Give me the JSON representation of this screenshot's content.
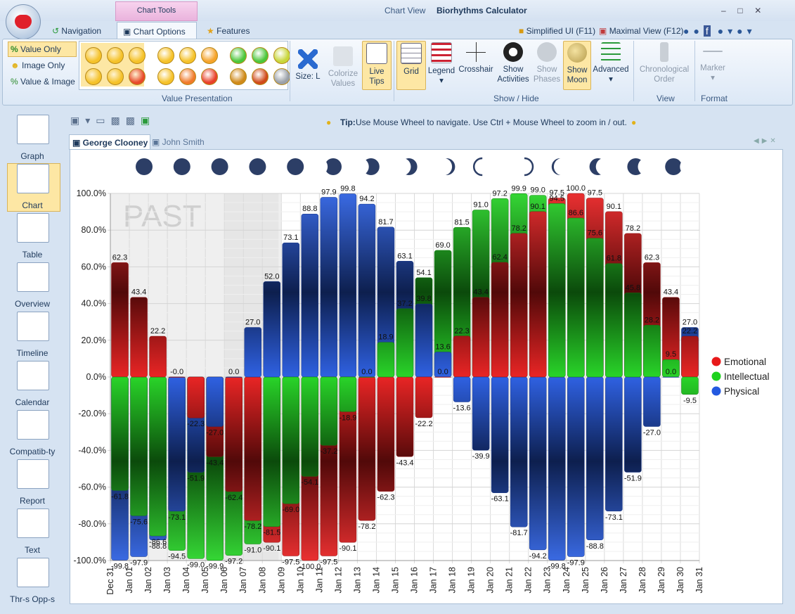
{
  "window": {
    "view_name": "Chart View",
    "app_title": "Biorhythms Calculator",
    "tool_group": "Chart Tools",
    "tabs": [
      "Navigation",
      "Chart Options",
      "Features"
    ],
    "quick_buttons": [
      "Simplified UI (F11)",
      "Maximal View (F12)"
    ]
  },
  "ribbon": {
    "value_modes": [
      "Value Only",
      "Image Only",
      "Value & Image"
    ],
    "size": "Size: L",
    "buttons": [
      "Colorize Values",
      "Live Tips",
      "Grid",
      "Legend",
      "Crosshair",
      "Show Activities",
      "Show Phases",
      "Show Moon",
      "Advanced",
      "Chronological Order",
      "Marker"
    ],
    "groups": [
      "Value Presentation",
      "Show / Hide",
      "View",
      "Format"
    ]
  },
  "sidebar": [
    "Graph",
    "Chart",
    "Table",
    "Overview",
    "Timeline",
    "Calendar",
    "Compatib-ty",
    "Report",
    "Text",
    "Thr-s  Opp-s"
  ],
  "toolbar": {
    "tip_label": "Tip:",
    "tip_text": "Use Mouse Wheel to navigate. Use Ctrl + Mouse Wheel to zoom in / out."
  },
  "profiles": [
    "George Clooney",
    "John Smith"
  ],
  "chart_data": {
    "type": "bar",
    "past_label": "PAST",
    "categories": [
      "Dec 31",
      "Jan 01",
      "Jan 02",
      "Jan 03",
      "Jan 04",
      "Jan 05",
      "Jan 06",
      "Jan 07",
      "Jan 08",
      "Jan 09",
      "Jan 10",
      "Jan 11",
      "Jan 12",
      "Jan 13",
      "Jan 14",
      "Jan 15",
      "Jan 16",
      "Jan 17",
      "Jan 18",
      "Jan 19",
      "Jan 20",
      "Jan 21",
      "Jan 22",
      "Jan 23",
      "Jan 24",
      "Jan 25",
      "Jan 26",
      "Jan 27",
      "Jan 28",
      "Jan 29",
      "Jan 30",
      "Jan 31"
    ],
    "series": [
      {
        "name": "Emotional",
        "color": "#e8191a",
        "values": [
          62.3,
          43.4,
          22.2,
          0,
          -22.3,
          -43.4,
          -62.4,
          -78.2,
          -90.1,
          -97.5,
          -100.0,
          -97.5,
          -90.1,
          -78.2,
          -62.3,
          -43.4,
          -22.2,
          0.0,
          22.3,
          43.4,
          62.4,
          78.2,
          90.1,
          97.5,
          100.0,
          97.5,
          90.1,
          78.2,
          62.3,
          43.4,
          22.2,
          null
        ],
        "value_labels": [
          "62.3",
          "43.4",
          "22.2",
          "-0.0",
          "-22.3",
          "-43.4",
          "-62.4",
          "-78.2",
          "-90.1",
          "-97.5",
          "-100.0",
          "-97.5",
          "-90.1",
          "-78.2",
          "-62.3",
          "-43.4",
          "-22.2",
          "0.0",
          "22.3",
          "43.4",
          "62.4",
          "78.2",
          "90.1",
          "97.5",
          "100.0",
          "97.5",
          "90.1",
          "78.2",
          "62.3",
          "43.4",
          "22.2",
          null
        ]
      },
      {
        "name": "Intellectual",
        "color": "#1ed21e",
        "values": [
          -61.8,
          -75.6,
          -86.6,
          -94.5,
          -99.0,
          -99.9,
          -97.2,
          -91.0,
          -81.5,
          -69.0,
          -54.1,
          -37.2,
          -18.9,
          0.0,
          18.9,
          37.2,
          54.1,
          69.0,
          81.5,
          91.0,
          97.2,
          99.9,
          99.0,
          94.5,
          86.6,
          75.6,
          61.8,
          45.8,
          28.2,
          9.5,
          -9.5,
          null
        ],
        "value_labels": [
          "-61.8",
          "-75.6",
          "-86.6",
          "-94.5",
          "-99.0",
          "-99.9",
          "-97.2",
          "-91.0",
          "-81.5",
          "-69.0",
          "-54.1",
          "-37.2",
          "-18.9",
          "0.0",
          "18.9",
          "37.2",
          "54.1",
          "69.0",
          "81.5",
          "91.0",
          "97.2",
          "99.9",
          "99.0",
          "94.5",
          "86.6",
          "75.6",
          "61.8",
          "45.8",
          "28.2",
          "9.5",
          "-9.5",
          null
        ]
      },
      {
        "name": "Physical",
        "color": "#2459e0",
        "values": [
          -99.8,
          -97.9,
          -88.8,
          -73.1,
          -51.9,
          -27.0,
          0.0,
          27.0,
          52.0,
          73.1,
          88.8,
          97.9,
          99.8,
          94.2,
          81.7,
          63.1,
          39.8,
          13.6,
          -13.6,
          -39.9,
          -63.1,
          -81.7,
          -94.2,
          -99.8,
          -97.9,
          -88.8,
          -73.1,
          -51.9,
          -27.0,
          0.0,
          27.0,
          null
        ],
        "value_labels": [
          "-99.8",
          "-97.9",
          "-88.8",
          "-73.1",
          "-51.9",
          "-27.0",
          "0.0",
          "27.0",
          "52.0",
          "73.1",
          "88.8",
          "97.9",
          "99.8",
          "94.2",
          "81.7",
          "63.1",
          "39.8",
          "13.6",
          "-13.6",
          "-39.9",
          "-63.1",
          "-81.7",
          "-94.2",
          "-99.8",
          "-97.9",
          "-88.8",
          "-73.1",
          "-51.9",
          "-27.0",
          "0.0",
          "27.0",
          null
        ]
      }
    ],
    "ylim": [
      -100,
      100
    ],
    "yticks": [
      {
        "value": -100,
        "label": "-100.0%"
      },
      {
        "value": -80,
        "label": "-80.0%"
      },
      {
        "value": -60,
        "label": "-60.0%"
      },
      {
        "value": -40,
        "label": "-40.0%"
      },
      {
        "value": -20,
        "label": "-20.0%"
      },
      {
        "value": 0,
        "label": "0.0%"
      },
      {
        "value": 20,
        "label": "20.0%"
      },
      {
        "value": 40,
        "label": "40.0%"
      },
      {
        "value": 60,
        "label": "60.0%"
      },
      {
        "value": 80,
        "label": "80.0%"
      },
      {
        "value": 100,
        "label": "100.0%"
      }
    ],
    "grid": true,
    "legend": "right"
  }
}
